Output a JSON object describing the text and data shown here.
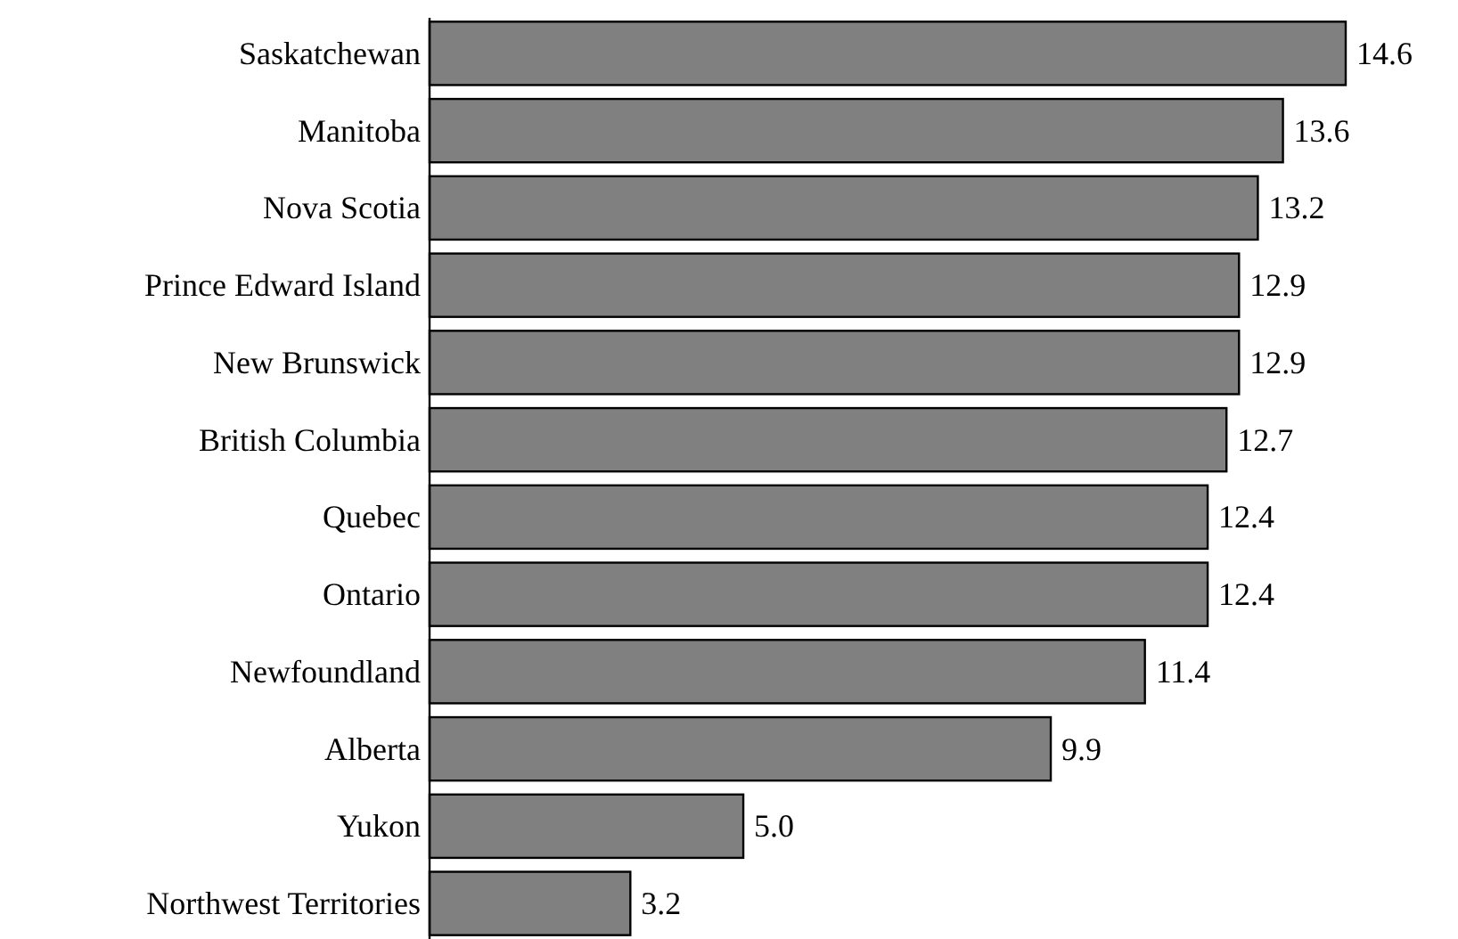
{
  "chart_data": {
    "type": "bar",
    "orientation": "horizontal",
    "categories": [
      "Saskatchewan",
      "Manitoba",
      "Nova Scotia",
      "Prince Edward Island",
      "New Brunswick",
      "British Columbia",
      "Quebec",
      "Ontario",
      "Newfoundland",
      "Alberta",
      "Yukon",
      "Northwest Territories"
    ],
    "values": [
      14.6,
      13.6,
      13.2,
      12.9,
      12.9,
      12.7,
      12.4,
      12.4,
      11.4,
      9.9,
      5.0,
      3.2
    ],
    "value_labels": [
      "14.6",
      "13.6",
      "13.2",
      "12.9",
      "12.9",
      "12.7",
      "12.4",
      "12.4",
      "11.4",
      "9.9",
      "5.0",
      "3.2"
    ],
    "color": "#808080",
    "grid": false
  }
}
